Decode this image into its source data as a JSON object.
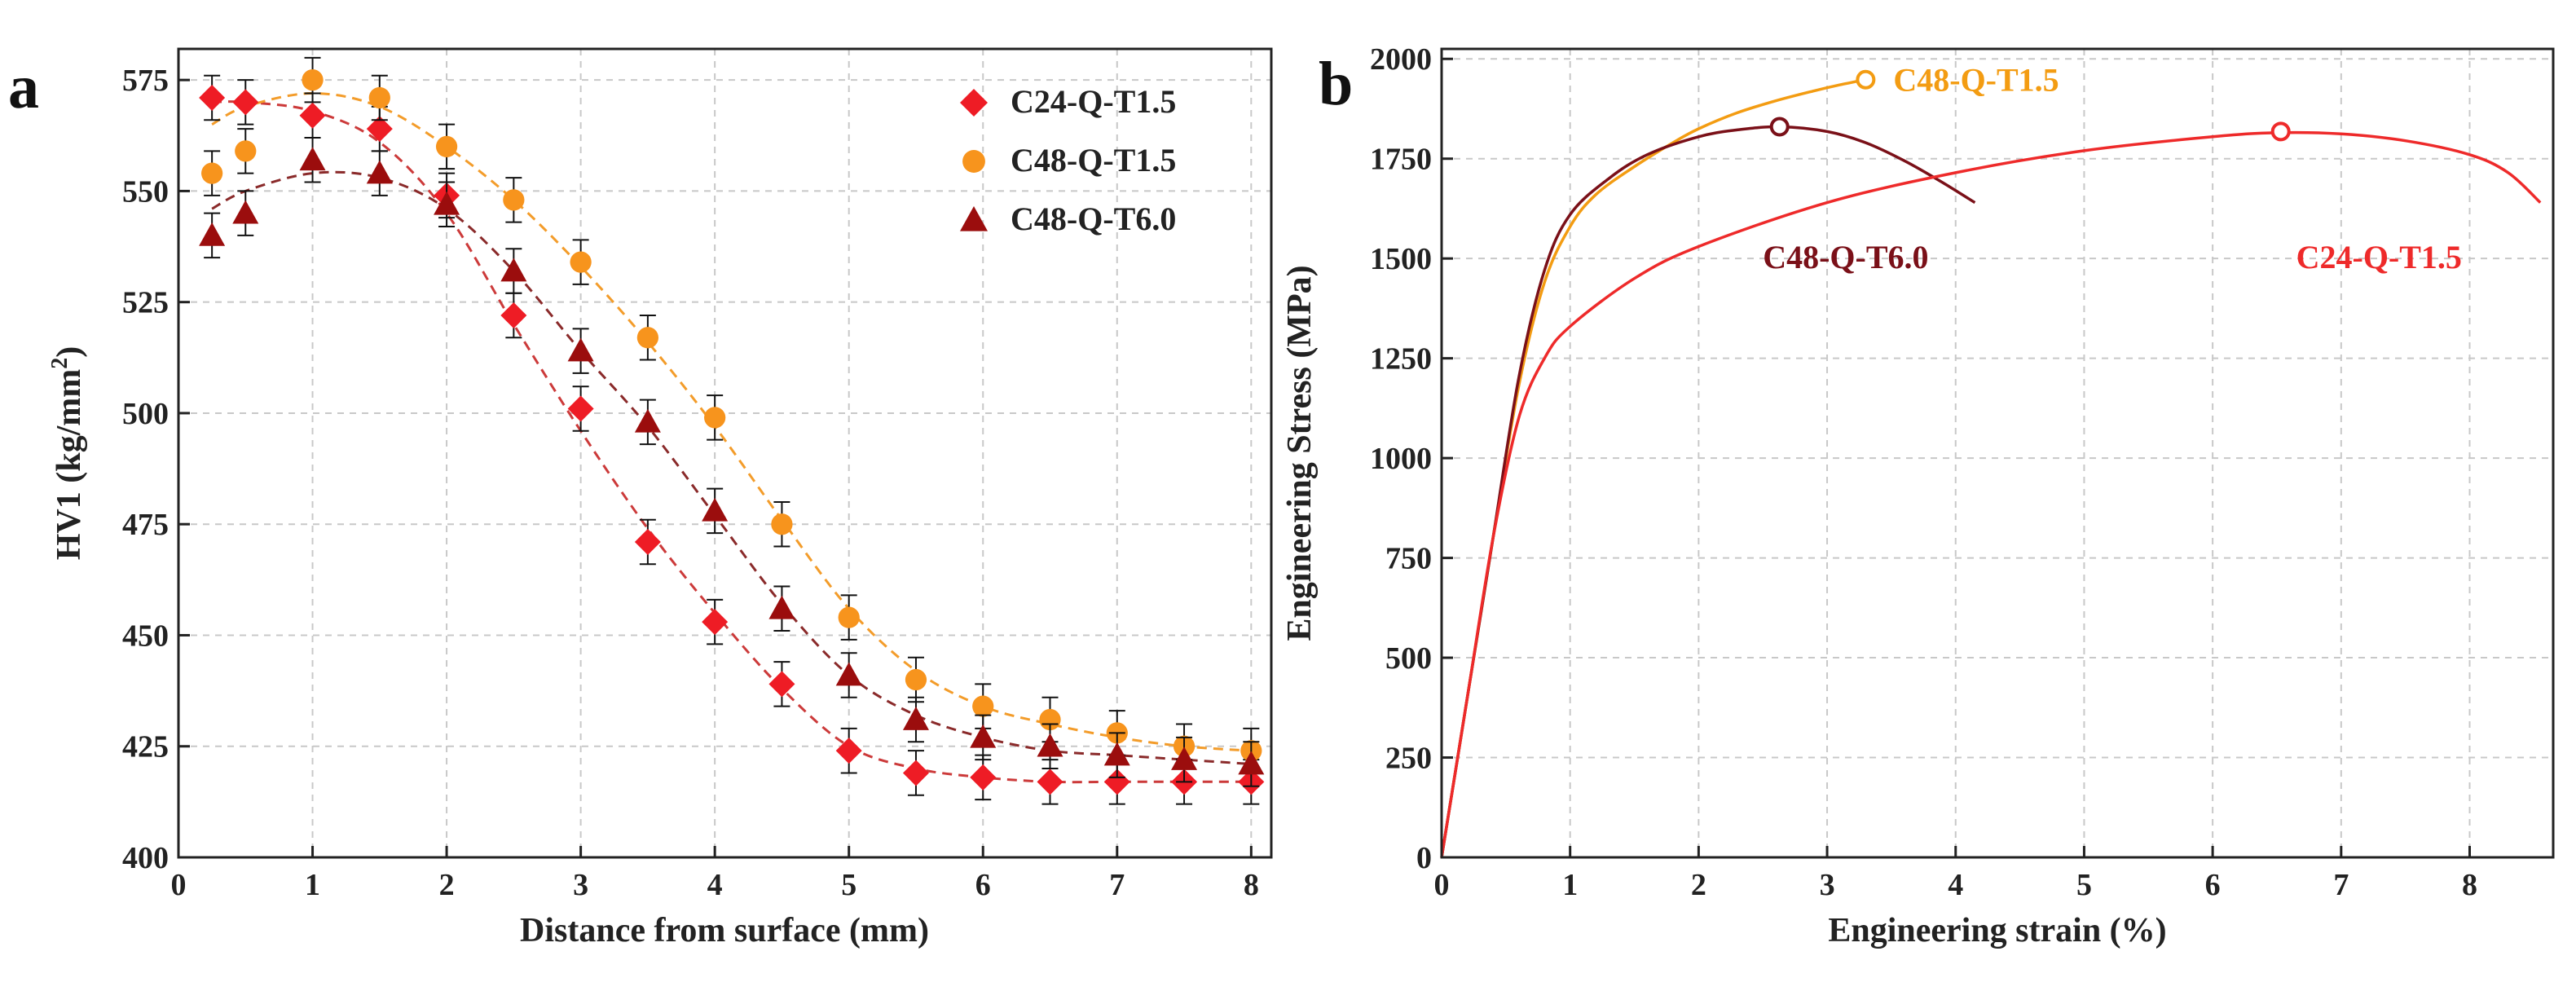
{
  "chart_data": [
    {
      "panel": "a",
      "type": "scatter",
      "title": "",
      "xlabel": "Distance from surface (mm)",
      "ylabel": "HV1 (kg/mm",
      "ylabel_superscript": "2",
      "ylabel_suffix": ")",
      "xlim": [
        0,
        8.15
      ],
      "ylim": [
        400,
        582
      ],
      "xticks": [
        0,
        1,
        2,
        3,
        4,
        5,
        6,
        7,
        8
      ],
      "yticks": [
        400,
        425,
        450,
        475,
        500,
        525,
        550,
        575
      ],
      "grid": true,
      "legend_position": "top-right",
      "series": [
        {
          "name": "C24-Q-T1.5",
          "marker": "diamond",
          "color": "#ee1c25",
          "fit_color": "#cc3a3a",
          "x": [
            0.25,
            0.5,
            1,
            1.5,
            2,
            2.5,
            3,
            3.5,
            4,
            4.5,
            5,
            5.5,
            6,
            6.5,
            7,
            7.5,
            8
          ],
          "y": [
            571,
            570,
            567,
            564,
            549,
            522,
            501,
            471,
            453,
            439,
            424,
            419,
            418,
            417,
            417,
            417,
            417
          ],
          "err": [
            5,
            5,
            5,
            5,
            5,
            5,
            5,
            5,
            5,
            5,
            5,
            5,
            5,
            5,
            5,
            5,
            5
          ]
        },
        {
          "name": "C48-Q-T1.5",
          "marker": "circle",
          "color": "#f7941d",
          "fit_color": "#f39c2a",
          "x": [
            0.25,
            0.5,
            1,
            1.5,
            2,
            2.5,
            3,
            3.5,
            4,
            4.5,
            5,
            5.5,
            6,
            6.5,
            7,
            7.5,
            8
          ],
          "y": [
            554,
            559,
            575,
            571,
            560,
            548,
            534,
            517,
            499,
            475,
            454,
            440,
            434,
            431,
            428,
            425,
            424
          ],
          "err": [
            5,
            5,
            5,
            5,
            5,
            5,
            5,
            5,
            5,
            5,
            5,
            5,
            5,
            5,
            5,
            5,
            5
          ]
        },
        {
          "name": "C48-Q-T6.0",
          "marker": "triangle",
          "color": "#9b0d0d",
          "fit_color": "#8a2a2a",
          "x": [
            0.25,
            0.5,
            1,
            1.5,
            2,
            2.5,
            3,
            3.5,
            4,
            4.5,
            5,
            5.5,
            6,
            6.5,
            7,
            7.5,
            8
          ],
          "y": [
            540,
            545,
            557,
            554,
            547,
            532,
            514,
            498,
            478,
            456,
            441,
            431,
            427,
            425,
            423,
            422,
            421
          ],
          "err": [
            5,
            5,
            5,
            5,
            5,
            5,
            5,
            5,
            5,
            5,
            5,
            5,
            5,
            5,
            5,
            5,
            5
          ]
        }
      ],
      "fits": [
        {
          "series": "C24-Q-T1.5",
          "x": [
            0.25,
            0.5,
            1,
            1.5,
            2,
            2.5,
            3,
            3.5,
            4,
            4.5,
            5,
            5.5,
            6,
            6.5,
            7,
            7.5,
            8
          ],
          "y": [
            570,
            570,
            568,
            561,
            545,
            520,
            496,
            474,
            455,
            438,
            425,
            420,
            418,
            417,
            417,
            417,
            417
          ]
        },
        {
          "series": "C48-Q-T1.5",
          "x": [
            0.25,
            0.5,
            1,
            1.5,
            2,
            2.5,
            3,
            3.5,
            4,
            4.5,
            5,
            5.5,
            6,
            6.5,
            7,
            7.5,
            8
          ],
          "y": [
            565,
            569,
            572,
            569,
            560,
            548,
            533,
            516,
            497,
            476,
            456,
            442,
            434,
            430,
            427,
            425,
            424
          ]
        },
        {
          "series": "C48-Q-T6.0",
          "x": [
            0.25,
            0.5,
            1,
            1.5,
            2,
            2.5,
            3,
            3.5,
            4,
            4.5,
            5,
            5.5,
            6,
            6.5,
            7,
            7.5,
            8
          ],
          "y": [
            546,
            550,
            554,
            553,
            546,
            532,
            514,
            497,
            477,
            457,
            441,
            432,
            427,
            424,
            423,
            422,
            421
          ]
        }
      ]
    },
    {
      "panel": "b",
      "type": "line",
      "title": "",
      "xlabel": "Engineering strain (%)",
      "ylabel": "Engineering Stress (MPa)",
      "xlim": [
        0,
        8.65
      ],
      "ylim": [
        0,
        2025
      ],
      "xticks": [
        0,
        1,
        2,
        3,
        4,
        5,
        6,
        7,
        8
      ],
      "yticks": [
        0,
        250,
        500,
        750,
        1000,
        1250,
        1500,
        1750,
        2000
      ],
      "grid": true,
      "series": [
        {
          "name": "C48-Q-T1.5",
          "color": "#f39c12",
          "label_position": "end-right",
          "x": [
            0,
            0.2,
            0.4,
            0.6,
            0.8,
            1.0,
            1.2,
            1.5,
            1.8,
            2.0,
            2.3,
            2.6,
            2.9,
            3.1,
            3.3
          ],
          "y": [
            0,
            400,
            800,
            1180,
            1440,
            1580,
            1660,
            1730,
            1790,
            1825,
            1865,
            1895,
            1920,
            1935,
            1948
          ],
          "marker_end": {
            "x": 3.3,
            "y": 1948
          }
        },
        {
          "name": "C48-Q-T6.0",
          "color": "#7a1018",
          "label_position": "below-right",
          "x": [
            0,
            0.2,
            0.4,
            0.6,
            0.8,
            1.0,
            1.3,
            1.6,
            2.0,
            2.3,
            2.63,
            3.0,
            3.3,
            3.6,
            3.9,
            4.15
          ],
          "y": [
            0,
            400,
            800,
            1200,
            1470,
            1610,
            1700,
            1760,
            1805,
            1822,
            1830,
            1818,
            1790,
            1745,
            1690,
            1640
          ],
          "marker_end": {
            "x": 2.63,
            "y": 1830
          }
        },
        {
          "name": "C24-Q-T1.5",
          "color": "#ee2a2a",
          "label_position": "below-right",
          "x": [
            0,
            0.2,
            0.4,
            0.6,
            0.8,
            1.0,
            1.5,
            2.0,
            3.0,
            4.0,
            5.0,
            6.0,
            6.5,
            7.0,
            7.5,
            8.0,
            8.3,
            8.55
          ],
          "y": [
            0,
            400,
            800,
            1100,
            1250,
            1330,
            1450,
            1530,
            1640,
            1715,
            1770,
            1805,
            1815,
            1812,
            1795,
            1760,
            1715,
            1640
          ],
          "marker_end": {
            "x": 6.53,
            "y": 1818
          }
        }
      ]
    }
  ]
}
